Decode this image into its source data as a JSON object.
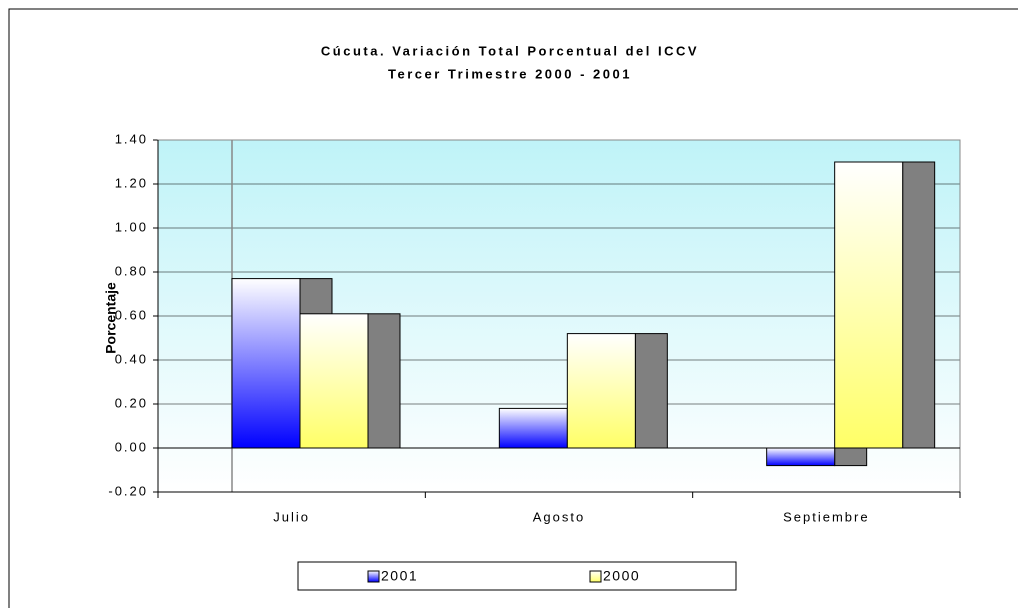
{
  "chart_data": {
    "type": "bar",
    "title": "Cúcuta. Variación Total Porcentual del ICCV",
    "subtitle": "Tercer Trimestre 2000 - 2001",
    "y_label": "Porcentaje",
    "categories": [
      "Julio",
      "Agosto",
      "Septiembre"
    ],
    "series": [
      {
        "name": "2001",
        "color": "#0000ff",
        "values": [
          0.77,
          0.18,
          -0.08
        ]
      },
      {
        "name": "2000",
        "color": "#ffff66",
        "values": [
          0.61,
          0.52,
          1.3
        ]
      }
    ],
    "ylim": [
      -0.2,
      1.4
    ],
    "yticks": [
      {
        "value": -0.2,
        "label": "-0.20"
      },
      {
        "value": 0,
        "label": "0.00"
      },
      {
        "value": 0.2,
        "label": "0.20"
      },
      {
        "value": 0.4,
        "label": "0.40"
      },
      {
        "value": 0.6,
        "label": "0.60"
      },
      {
        "value": 0.8,
        "label": "0.80"
      },
      {
        "value": 1.0,
        "label": "1.00"
      },
      {
        "value": 1.2,
        "label": "1.20"
      },
      {
        "value": 1.4,
        "label": "1.40"
      }
    ],
    "grid": true
  }
}
